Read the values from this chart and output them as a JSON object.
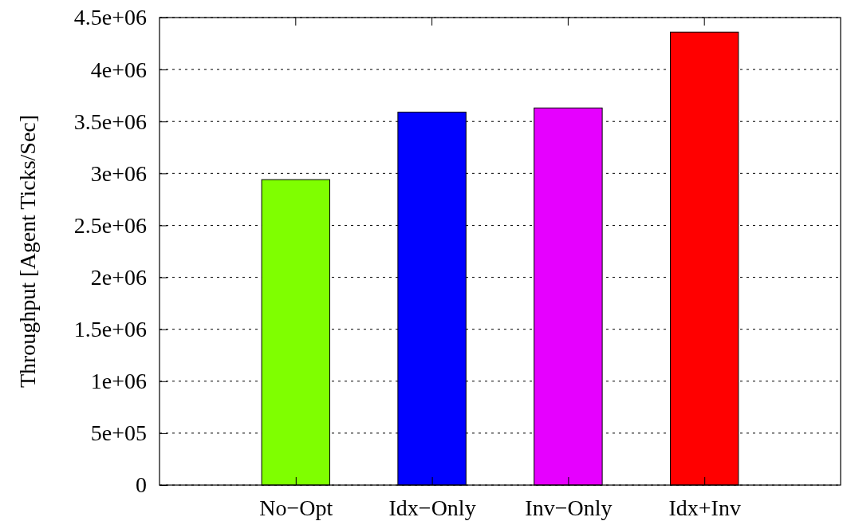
{
  "chart_data": {
    "type": "bar",
    "ylabel": "Throughput [Agent Ticks/Sec]",
    "categories": [
      "No−Opt",
      "Idx−Only",
      "Inv−Only",
      "Idx+Inv"
    ],
    "colors": [
      "#7fff00",
      "#0000ff",
      "#e600ff",
      "#ff0000"
    ],
    "values": [
      2940000,
      3590000,
      3630000,
      4360000
    ],
    "ylim": [
      0,
      4500000
    ],
    "yticks": [
      {
        "value": 0,
        "label": "0"
      },
      {
        "value": 500000,
        "label": "5e+05"
      },
      {
        "value": 1000000,
        "label": "1e+06"
      },
      {
        "value": 1500000,
        "label": "1.5e+06"
      },
      {
        "value": 2000000,
        "label": "2e+06"
      },
      {
        "value": 2500000,
        "label": "2.5e+06"
      },
      {
        "value": 3000000,
        "label": "3e+06"
      },
      {
        "value": 3500000,
        "label": "3.5e+06"
      },
      {
        "value": 4000000,
        "label": "4e+06"
      },
      {
        "value": 4500000,
        "label": "4.5e+06"
      }
    ],
    "grid": "y"
  }
}
